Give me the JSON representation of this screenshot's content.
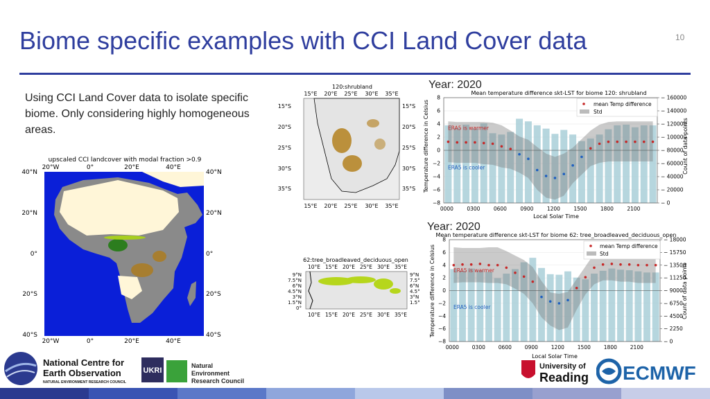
{
  "slide": {
    "title": "Biome specific examples with CCI Land Cover data",
    "page_number": "10",
    "body_text": "Using CCI Land Cover data to isolate specific biome. Only considering highly homogeneous areas."
  },
  "africa_map": {
    "title": "upscaled CCI landcover with modal fraction >0.9",
    "x_ticks": [
      "20°W",
      "0°",
      "20°E",
      "40°E"
    ],
    "y_ticks": [
      "40°N",
      "20°N",
      "0°",
      "20°S",
      "40°S"
    ],
    "colors": {
      "ocean": "#0a1fd8",
      "land": "#8a8a8a",
      "desert": "#fff6d8",
      "forest": "#2c7d1e",
      "shrub": "#b07a12"
    }
  },
  "shrub_map": {
    "title": "120:shrubland",
    "x_ticks": [
      "15°E",
      "20°E",
      "25°E",
      "30°E",
      "35°E"
    ],
    "y_ticks": [
      "15°S",
      "20°S",
      "25°S",
      "30°S",
      "35°S"
    ]
  },
  "tree_map": {
    "title": "62:tree_broadleaved_deciduous_open",
    "x_ticks": [
      "10°E",
      "15°E",
      "20°E",
      "25°E",
      "30°E",
      "35°E"
    ],
    "y_ticks": [
      "9°N",
      "7.5°N",
      "6°N",
      "4.5°N",
      "3°N",
      "1.5°N",
      "0°"
    ]
  },
  "chart1_meta": {
    "year": "Year: 2020",
    "legend_mean": "mean Temp difference",
    "legend_std": "Std",
    "warm_label": "ERA5 is warmer",
    "cool_label": "ERA5 is cooler"
  },
  "chart2_meta": {
    "year": "Year: 2020",
    "legend_mean": "mean Temp difference",
    "legend_std": "Std",
    "warm_label": "ERA5 is warmer",
    "cool_label": "ERA5 is cooler"
  },
  "chart_data": [
    {
      "type": "bar",
      "title": "Mean temperature difference skt-LST for biome 120: shrubland",
      "xlabel": "Local Solar Time",
      "ylabel": "Temperature difference in Celsius",
      "y2label": "Count of data points",
      "xtick_labels": [
        "0000",
        "0300",
        "0600",
        "0900",
        "1200",
        "1500",
        "1800",
        "2100"
      ],
      "ylim": [
        -8,
        8
      ],
      "yticks": [
        -8,
        -6,
        -4,
        -2,
        0,
        2,
        4,
        6,
        8
      ],
      "y2lim": [
        0,
        160000
      ],
      "y2ticks": [
        "0",
        "20000",
        "40000",
        "60000",
        "80000",
        "100000",
        "120000",
        "140000",
        "160000"
      ],
      "x": [
        0,
        1,
        2,
        3,
        4,
        5,
        6,
        7,
        8,
        9,
        10,
        11,
        12,
        13,
        14,
        15,
        16,
        17,
        18,
        19,
        20,
        21,
        22,
        23
      ],
      "counts": [
        118000,
        114000,
        119000,
        113000,
        121000,
        106000,
        104000,
        108000,
        128000,
        124000,
        118000,
        113000,
        105000,
        111000,
        104000,
        94000,
        98000,
        104000,
        112000,
        118000,
        119000,
        115000,
        118000,
        118000
      ],
      "mean": [
        1.3,
        1.2,
        1.2,
        1.2,
        1.1,
        1.0,
        0.6,
        0.2,
        -0.6,
        -1.3,
        -3.0,
        -3.9,
        -4.2,
        -3.6,
        -2.3,
        -1.0,
        0.3,
        1.0,
        1.3,
        1.3,
        1.3,
        1.3,
        1.3,
        1.3
      ],
      "std_upper": [
        4.4,
        4.3,
        4.3,
        4.3,
        4.3,
        4.2,
        3.8,
        3.0,
        2.1,
        1.6,
        0.5,
        -0.5,
        -1.0,
        -0.5,
        0.4,
        1.7,
        3.0,
        3.9,
        4.3,
        4.4,
        4.4,
        4.4,
        4.4,
        4.4
      ],
      "std_lower": [
        -1.8,
        -1.9,
        -1.9,
        -1.9,
        -2.1,
        -2.2,
        -2.6,
        -2.8,
        -3.4,
        -4.2,
        -6.0,
        -7.2,
        -7.5,
        -6.9,
        -5.0,
        -3.7,
        -2.4,
        -1.9,
        -1.7,
        -1.7,
        -1.7,
        -1.7,
        -1.7,
        -1.7
      ]
    },
    {
      "type": "bar",
      "title": "Mean temperature difference skt-LST for biome 62: tree_broadleaved_deciduous_open",
      "xlabel": "Local Solar Time",
      "ylabel": "Temperature difference in Celsius",
      "y2label": "Count of data points",
      "xtick_labels": [
        "0000",
        "0300",
        "0600",
        "0900",
        "1200",
        "1500",
        "1800",
        "2100"
      ],
      "ylim": [
        -8,
        8
      ],
      "yticks": [
        -8,
        -6,
        -4,
        -2,
        0,
        2,
        4,
        6,
        8
      ],
      "y2lim": [
        0,
        18000
      ],
      "y2ticks": [
        "0",
        "2250",
        "4500",
        "6750",
        "9000",
        "11250",
        "13500",
        "15750",
        "18000"
      ],
      "x": [
        0,
        1,
        2,
        3,
        4,
        5,
        6,
        7,
        8,
        9,
        10,
        11,
        12,
        13,
        14,
        15,
        16,
        17,
        18,
        19,
        20,
        21,
        22,
        23
      ],
      "counts": [
        12800,
        12500,
        12900,
        12600,
        12300,
        11200,
        12000,
        12800,
        14000,
        14800,
        13000,
        11900,
        11800,
        12400,
        11300,
        11000,
        12000,
        12500,
        12900,
        12700,
        12600,
        12400,
        12200,
        12200
      ],
      "mean": [
        4.0,
        4.1,
        4.1,
        4.2,
        4.0,
        4.0,
        3.6,
        2.8,
        2.2,
        1.4,
        -1.0,
        -1.7,
        -2.0,
        -1.5,
        0.4,
        2.1,
        3.6,
        4.1,
        4.2,
        4.1,
        4.1,
        4.0,
        4.0,
        4.0
      ],
      "std_upper": [
        6.8,
        6.7,
        6.7,
        6.7,
        6.8,
        6.8,
        6.2,
        5.5,
        4.8,
        3.7,
        1.5,
        -0.3,
        -0.5,
        -0.2,
        1.8,
        3.8,
        5.8,
        6.4,
        6.8,
        6.8,
        6.8,
        6.8,
        6.8,
        6.8
      ],
      "std_lower": [
        1.2,
        1.3,
        1.3,
        1.3,
        1.2,
        1.2,
        1.0,
        0.3,
        -0.5,
        -2.0,
        -4.2,
        -5.5,
        -6.2,
        -5.8,
        -3.0,
        -0.6,
        1.0,
        1.6,
        1.6,
        1.4,
        1.4,
        1.2,
        1.2,
        1.2
      ]
    }
  ],
  "logos": {
    "nceo_line1": "National Centre for",
    "nceo_line2": "Earth Observation",
    "nceo_line3": "NATURAL ENVIRONMENT RESEARCH COUNCIL",
    "ukri_text": "UKRI",
    "nerc_line1": "Natural",
    "nerc_line2": "Environment",
    "nerc_line3": "Research Council",
    "reading_line1": "University of",
    "reading_line2": "Reading",
    "ecmwf": "ECMWF"
  },
  "footer_colors": [
    "#2b3a8f",
    "#3a54b3",
    "#5b78c8",
    "#8fa6dc",
    "#b9c8ea",
    "#7e8fc6",
    "#98a0cf",
    "#c7cde8"
  ]
}
